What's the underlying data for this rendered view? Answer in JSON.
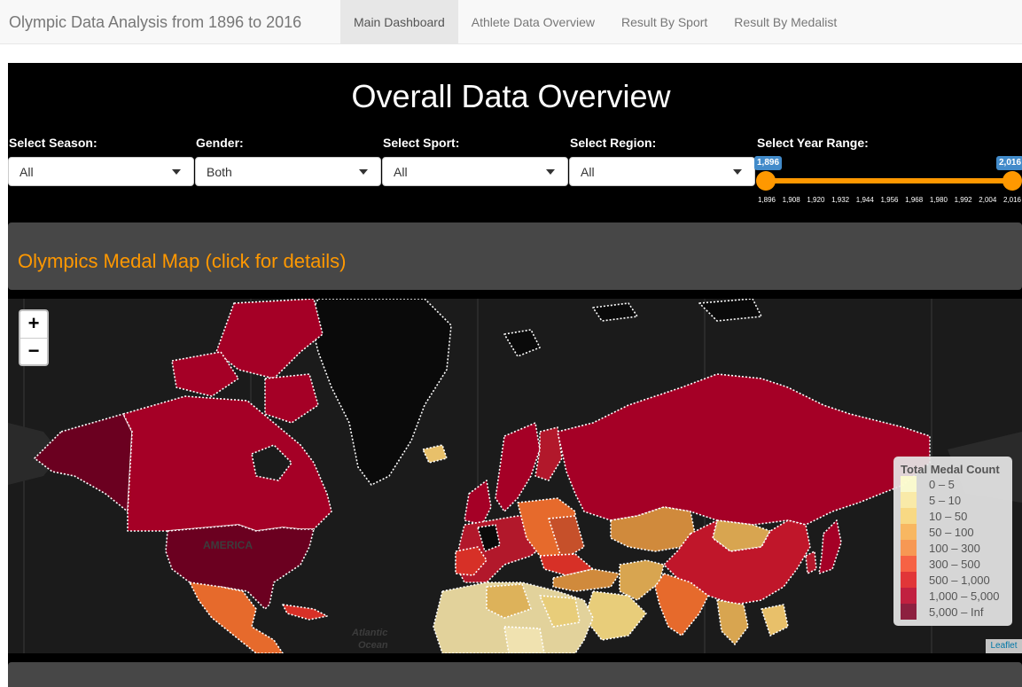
{
  "navbar": {
    "brand": "Olympic Data Analysis from 1896 to 2016",
    "tabs": [
      {
        "label": "Main Dashboard",
        "active": true
      },
      {
        "label": "Athlete Data Overview",
        "active": false
      },
      {
        "label": "Result By Sport",
        "active": false
      },
      {
        "label": "Result By Medalist",
        "active": false
      }
    ]
  },
  "overview": {
    "title": "Overall Data Overview",
    "filters": {
      "season": {
        "label": "Select Season:",
        "value": "All"
      },
      "gender": {
        "label": "Gender:",
        "value": "Both"
      },
      "sport": {
        "label": "Select Sport:",
        "value": "All"
      },
      "region": {
        "label": "Select Region:",
        "value": "All"
      }
    },
    "year_range": {
      "label": "Select Year Range:",
      "min_label": "1,896",
      "max_label": "2,016",
      "min": 1896,
      "max": 2016,
      "ticks": [
        "1,896",
        "1,908",
        "1,920",
        "1,932",
        "1,944",
        "1,956",
        "1,968",
        "1,980",
        "1,992",
        "2,004",
        "2,016"
      ],
      "color": "#FF9800"
    }
  },
  "map_section": {
    "title": "Olympics Medal Map (click for details)",
    "title_color": "#FF9800",
    "zoom_in": "+",
    "zoom_out": "−",
    "map_labels": {
      "america": "AMERICA",
      "atlantic": "Atlantic",
      "ocean": "Ocean"
    },
    "legend": {
      "title": "Total Medal Count",
      "bins": [
        {
          "label": "0 – 5",
          "color": "#FFFFCC"
        },
        {
          "label": "5 – 10",
          "color": "#FFEDA0"
        },
        {
          "label": "10 – 50",
          "color": "#FED976"
        },
        {
          "label": "50 – 100",
          "color": "#FEB24C"
        },
        {
          "label": "100 – 300",
          "color": "#FD8D3C"
        },
        {
          "label": "300 – 500",
          "color": "#FC4E2A"
        },
        {
          "label": "500 – 1,000",
          "color": "#E31A1C"
        },
        {
          "label": "1,000 – 5,000",
          "color": "#BD0026"
        },
        {
          "label": "5,000 – Inf",
          "color": "#800026"
        }
      ]
    },
    "attribution": "Leaflet"
  }
}
